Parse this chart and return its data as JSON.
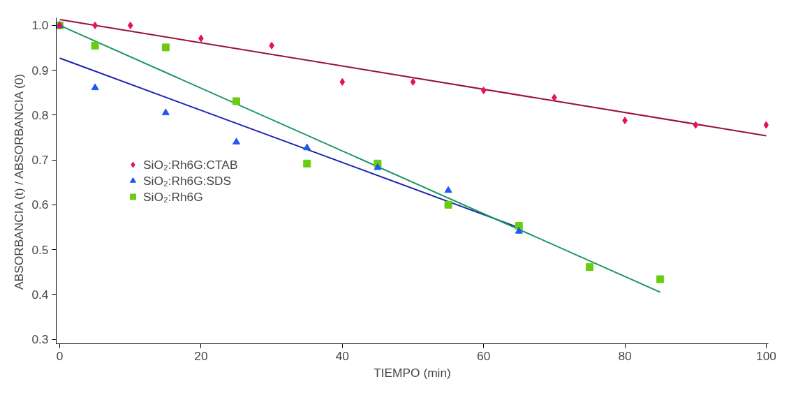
{
  "chart_data": {
    "type": "scatter",
    "xlabel": "TIEMPO (min)",
    "ylabel": "ABSORBANCIA (t) / ABSORBANCIA (0)",
    "xlim": [
      -0.5,
      100.3
    ],
    "ylim": [
      0.29,
      1.017
    ],
    "xticks": [
      0,
      20,
      40,
      60,
      80,
      100
    ],
    "yticks": [
      0.3,
      0.4,
      0.5,
      0.6,
      0.7,
      0.8,
      0.9,
      {
        "value": 1.0,
        "label": "1.0"
      }
    ],
    "grid": false,
    "legend": "left",
    "series": [
      {
        "name": "SiO₂:Rh6G:CTAB",
        "marker": "diamond",
        "color": "#e8105e",
        "x": [
          0,
          5,
          10,
          20,
          30,
          40,
          50,
          60,
          70,
          80,
          90,
          100
        ],
        "values": [
          1.0,
          1.0,
          1.0,
          0.971,
          0.955,
          0.874,
          0.874,
          0.855,
          0.839,
          0.788,
          0.778,
          0.778
        ]
      },
      {
        "name": "SiO₂:Rh6G:SDS",
        "marker": "triangle",
        "color": "#1f5af0",
        "x": [
          0,
          5,
          15,
          25,
          35,
          45,
          55,
          65
        ],
        "values": [
          1.0,
          0.861,
          0.805,
          0.74,
          0.727,
          0.683,
          0.632,
          0.541
        ]
      },
      {
        "name": "SiO₂:Rh6G",
        "marker": "square",
        "color": "#6acc10",
        "x": [
          0,
          5,
          15,
          25,
          35,
          45,
          55,
          65,
          75,
          85
        ],
        "values": [
          1.0,
          0.955,
          0.951,
          0.831,
          0.692,
          0.692,
          0.6,
          0.553,
          0.461,
          0.434
        ]
      },
      {
        "type": "line",
        "color": "#99103e",
        "x": [
          0,
          100
        ],
        "values": [
          1.013,
          0.754
        ]
      },
      {
        "type": "line",
        "color": "#1a22b0",
        "x": [
          0,
          65
        ],
        "values": [
          0.927,
          0.549
        ]
      },
      {
        "type": "line",
        "color": "#14975a",
        "x": [
          0,
          85
        ],
        "values": [
          1.0,
          0.405
        ]
      }
    ]
  }
}
